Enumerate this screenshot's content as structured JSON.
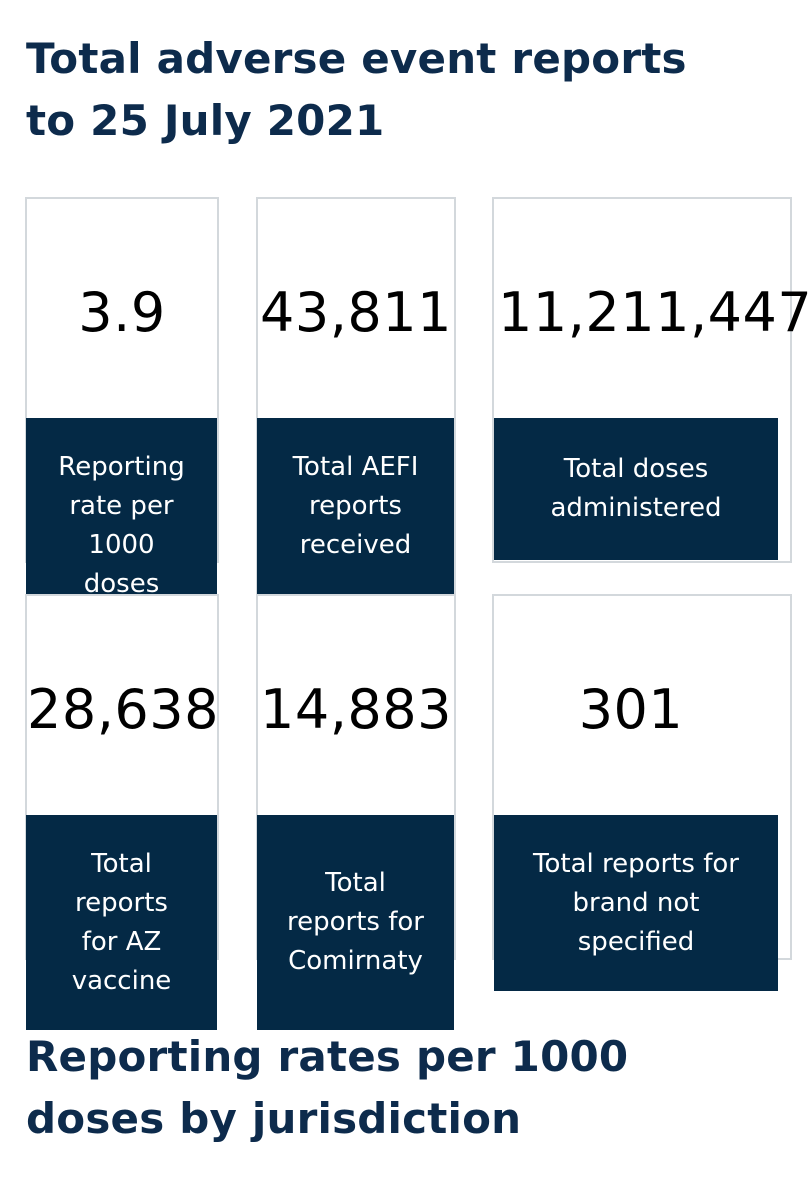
{
  "headings": {
    "main": "Total adverse event reports to 25 July 2021",
    "jurisdiction": "Reporting rates per 1000 doses by jurisdiction"
  },
  "stats": [
    {
      "value": "3.9",
      "label": "Reporting rate per 1000 doses"
    },
    {
      "value": "43,811",
      "label": "Total AEFI reports received"
    },
    {
      "value": "11,211,447",
      "label": "Total doses administered"
    },
    {
      "value": "28,638",
      "label": "Total reports for AZ vaccine"
    },
    {
      "value": "14,883",
      "label": "Total reports for Comirnaty"
    },
    {
      "value": "301",
      "label": "Total reports for brand not specified"
    }
  ],
  "colors": {
    "heading": "#0d2b4c",
    "label_background": "#042945",
    "card_border": "#d3d8dc"
  }
}
